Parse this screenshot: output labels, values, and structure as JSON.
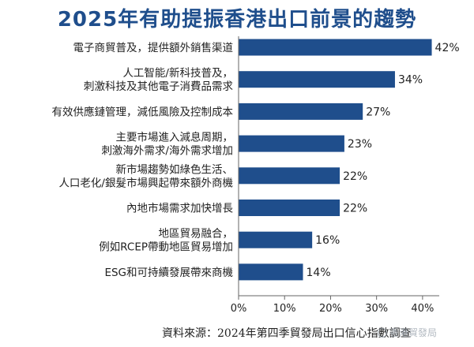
{
  "chart_data": {
    "type": "bar",
    "orientation": "horizontal",
    "title": "2025年有助提振香港出口前景的趨勢",
    "categories": [
      [
        "電子商貿普及，提供額外銷售渠道"
      ],
      [
        "人工智能/新科技普及，",
        "刺激科技及其他電子消費品需求"
      ],
      [
        "有效供應鏈管理，減低風險及控制成本"
      ],
      [
        "主要市場進入減息周期，",
        "刺激海外需求/海外需求增加"
      ],
      [
        "新市場趨勢如綠色生活、",
        "人口老化/銀髮市場興起帶來額外商機"
      ],
      [
        "內地市場需求加快增長"
      ],
      [
        "地區貿易融合，",
        "例如RCEP帶動地區貿易增加"
      ],
      [
        "ESG和可持續發展帶來商機"
      ]
    ],
    "values": [
      42,
      34,
      27,
      23,
      22,
      22,
      16,
      14
    ],
    "value_labels": [
      "42%",
      "34%",
      "27%",
      "23%",
      "22%",
      "22%",
      "16%",
      "14%"
    ],
    "x_ticks": [
      "0%",
      "10%",
      "20%",
      "30%",
      "40%"
    ],
    "xlim": [
      0,
      45
    ],
    "bar_color": "#1f4e8c",
    "title_color": "#1f4e8c",
    "grid": false,
    "legend": "none"
  },
  "source_note": "資料來源：2024年第四季貿發局出口信心指數調查",
  "watermark": "香港貿發局"
}
